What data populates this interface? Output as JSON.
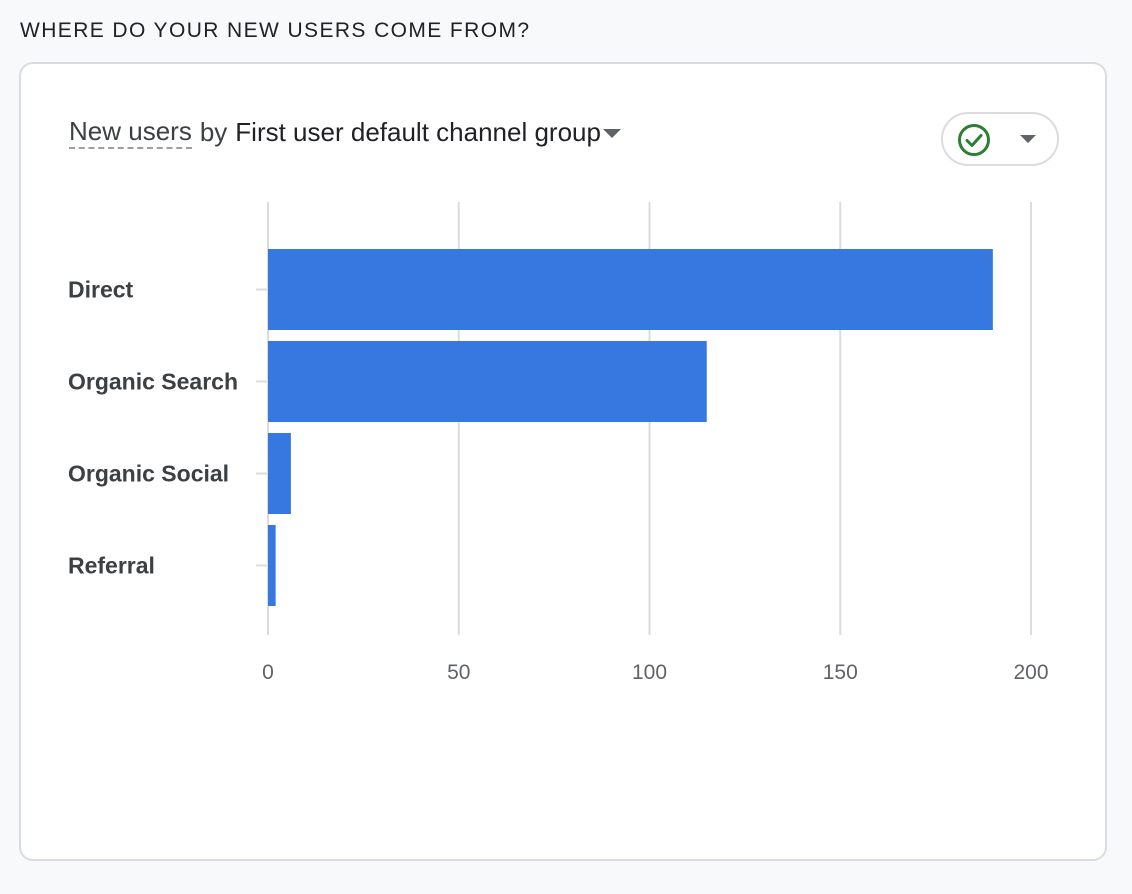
{
  "section": {
    "title": "WHERE DO YOUR NEW USERS COME FROM?"
  },
  "card": {
    "metric_label": "New users",
    "by_label": "by",
    "dimension_label": "First user default channel group",
    "status_icon": "check-circle-icon",
    "colors": {
      "bar": "#3677e0",
      "status": "#2e7d32",
      "grid": "#dadce0"
    }
  },
  "chart_data": {
    "type": "bar",
    "orientation": "horizontal",
    "categories": [
      "Direct",
      "Organic Search",
      "Organic Social",
      "Referral"
    ],
    "values": [
      190,
      115,
      6,
      2
    ],
    "xlim": [
      0,
      200
    ],
    "xticks": [
      0,
      50,
      100,
      150,
      200
    ],
    "xtick_labels": [
      "0",
      "50",
      "100",
      "150",
      "200"
    ],
    "grid": true,
    "legend": false
  }
}
